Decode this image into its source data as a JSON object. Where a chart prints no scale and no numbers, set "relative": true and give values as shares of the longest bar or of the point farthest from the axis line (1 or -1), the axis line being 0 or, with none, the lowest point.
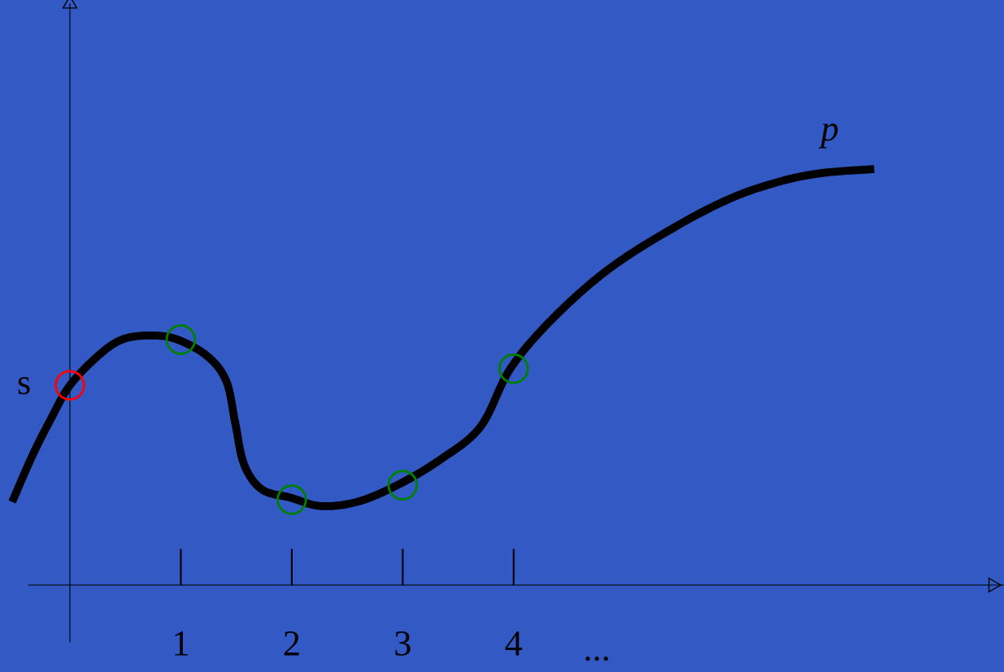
{
  "chart_data": {
    "type": "line",
    "relative": true,
    "xlim": [
      -0.63,
      8.42
    ],
    "xticks": [
      1,
      2,
      3,
      4
    ],
    "tick_labels": "x",
    "grid": false,
    "legend": false,
    "annotations": [
      "..."
    ],
    "series": [
      {
        "name": "p",
        "color": "#000000",
        "marker": "none",
        "line_style": "solid",
        "x": [
          -0.52,
          -0.34,
          -0.17,
          0,
          0.25,
          0.47,
          0.73,
          0.97,
          1.24,
          1.41,
          1.49,
          1.57,
          1.73,
          1.99,
          2.26,
          2.59,
          2.95,
          3.33,
          3.7,
          3.97,
          4.35,
          4.86,
          5.45,
          5.96,
          6.4,
          6.77,
          7.25
        ],
        "values": [
          0.2,
          0.31,
          0.4,
          0.48,
          0.55,
          0.59,
          0.6,
          0.59,
          0.55,
          0.49,
          0.39,
          0.29,
          0.23,
          0.21,
          0.19,
          0.2,
          0.24,
          0.3,
          0.38,
          0.52,
          0.64,
          0.76,
          0.86,
          0.93,
          0.97,
          0.99,
          1.0
        ]
      },
      {
        "name": "s",
        "type": "scatter",
        "color": "#ff0000",
        "marker": "circle",
        "x": [
          0
        ],
        "values": [
          0.48
        ]
      },
      {
        "type": "scatter",
        "color": "#008000",
        "marker": "circle",
        "x": [
          1,
          2,
          3,
          4
        ],
        "values": [
          0.59,
          0.205,
          0.24,
          0.52
        ]
      }
    ]
  }
}
